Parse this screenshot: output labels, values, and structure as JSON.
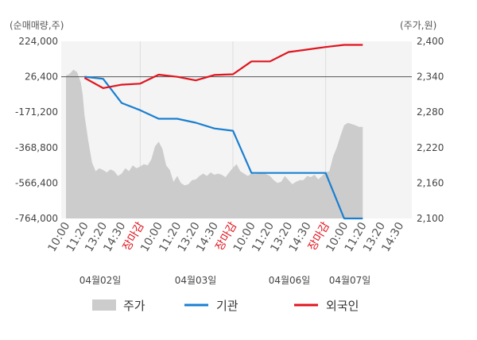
{
  "chart_data": {
    "type": "line",
    "left_axis": {
      "unit_label": "(순매매량,주)",
      "ticks": [
        "224,000",
        "26,400",
        "-171,200",
        "-368,800",
        "-566,400",
        "-764,000"
      ],
      "range": [
        -764000,
        224000
      ]
    },
    "right_axis": {
      "unit_label": "(주가,원)",
      "ticks": [
        "2,400",
        "2,340",
        "2,280",
        "2,220",
        "2,160",
        "2,100"
      ],
      "range": [
        2100,
        2400
      ]
    },
    "x_labels": [
      "10:00",
      "11:20",
      "13:20",
      "14:30",
      "장마감",
      "10:00",
      "11:20",
      "13:20",
      "14:30",
      "장마감",
      "10:00",
      "11:20",
      "13:20",
      "14:30",
      "장마감",
      "10:00",
      "11:20",
      "13:20",
      "14:30"
    ],
    "close_label": "장마감",
    "dates": [
      "04월02일",
      "04월03일",
      "04월06일",
      "04월07일"
    ],
    "series": [
      {
        "name": "주가",
        "axis": "right",
        "kind": "area",
        "color": "#cccccc",
        "x": [
          0,
          0.2,
          0.4,
          0.6,
          0.8,
          0.9,
          1.0,
          1.2,
          1.4,
          1.6,
          1.8,
          2.0,
          2.2,
          2.4,
          2.6,
          2.8,
          3.0,
          3.2,
          3.4,
          3.6,
          3.8,
          4.0,
          4.2,
          4.4,
          4.6,
          4.8,
          5.0,
          5.2,
          5.4,
          5.6,
          5.8,
          6.0,
          6.2,
          6.4,
          6.6,
          6.8,
          7.0,
          7.2,
          7.4,
          7.6,
          7.8,
          8.0,
          8.2,
          8.4,
          8.6,
          8.8,
          9.0,
          9.2,
          9.4,
          9.6,
          9.8,
          10.0,
          10.2,
          10.4,
          10.6,
          10.8,
          11.0,
          11.2,
          11.4,
          11.6,
          11.8,
          12.0,
          12.2,
          12.4,
          12.6,
          12.8,
          13.0,
          13.2,
          13.4,
          13.6,
          13.8,
          14.0,
          14.2,
          14.4,
          14.6,
          14.8,
          15.0,
          15.2,
          15.4,
          15.6,
          15.8,
          16.0
        ],
        "values": [
          2342,
          2345,
          2352,
          2348,
          2330,
          2310,
          2275,
          2232,
          2195,
          2180,
          2185,
          2182,
          2178,
          2183,
          2180,
          2172,
          2176,
          2185,
          2180,
          2190,
          2185,
          2188,
          2192,
          2190,
          2200,
          2222,
          2230,
          2218,
          2190,
          2182,
          2162,
          2172,
          2160,
          2156,
          2158,
          2165,
          2166,
          2172,
          2176,
          2172,
          2178,
          2174,
          2176,
          2174,
          2170,
          2178,
          2186,
          2192,
          2180,
          2176,
          2172,
          2176,
          2175,
          2176,
          2178,
          2175,
          2172,
          2165,
          2160,
          2162,
          2172,
          2165,
          2158,
          2162,
          2165,
          2165,
          2172,
          2170,
          2174,
          2166,
          2172,
          2178,
          2180,
          2205,
          2220,
          2240,
          2258,
          2262,
          2260,
          2258,
          2255,
          2255
        ]
      },
      {
        "name": "기관",
        "axis": "left",
        "kind": "line",
        "color": "#1a7fd0",
        "x": [
          1,
          2,
          3,
          4,
          5,
          6,
          7,
          8,
          9,
          10,
          11,
          12,
          13,
          14,
          15,
          16
        ],
        "values": [
          26400,
          15000,
          -120000,
          -160000,
          -208000,
          -208000,
          -230000,
          -262000,
          -275000,
          -510000,
          -510000,
          -510000,
          -510000,
          -510000,
          -764000,
          -764000
        ]
      },
      {
        "name": "외국인",
        "axis": "left",
        "kind": "line",
        "color": "#e0141e",
        "x": [
          1,
          2,
          3,
          4,
          5,
          6,
          7,
          8,
          9,
          10,
          11,
          12,
          13,
          14,
          15,
          16
        ],
        "values": [
          20000,
          -37000,
          -18000,
          -12000,
          38000,
          26000,
          6000,
          36000,
          40000,
          112000,
          112000,
          164000,
          178000,
          192000,
          204000,
          204000
        ]
      }
    ]
  }
}
